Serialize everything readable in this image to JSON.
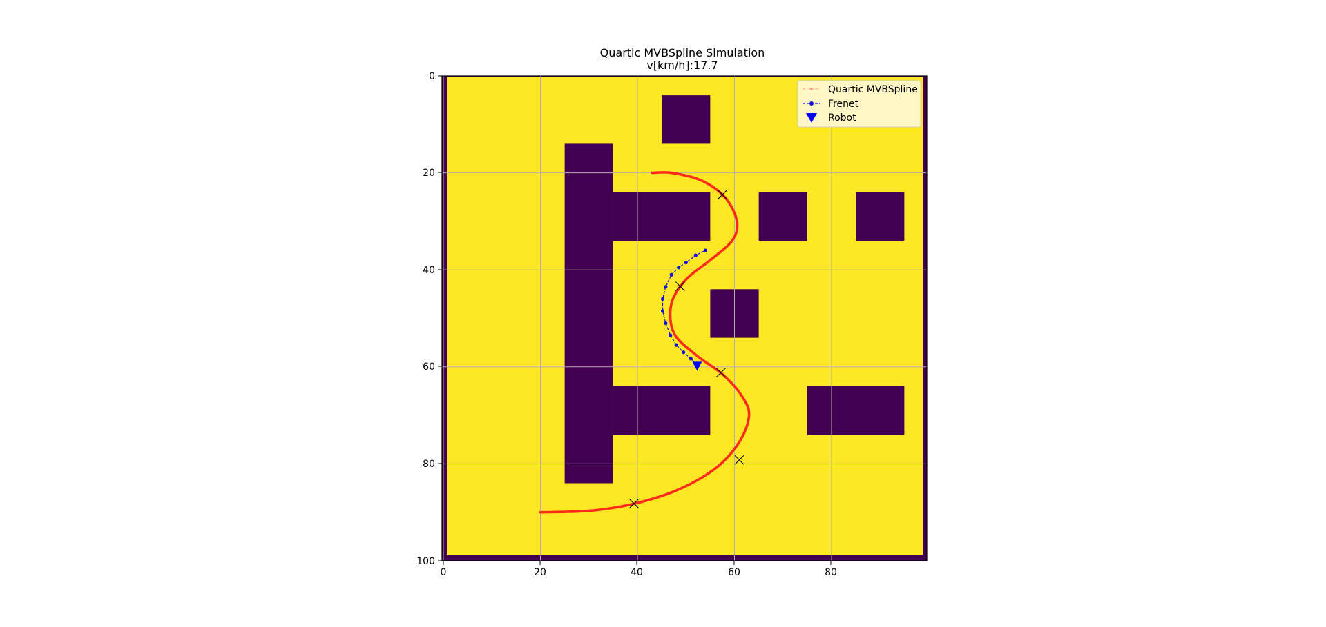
{
  "chart_data": {
    "type": "line",
    "title": "Quartic MVBSpline Simulation",
    "subtitle": "v[km/h]:17.7",
    "xlim": [
      0,
      100
    ],
    "ylim": [
      100,
      0
    ],
    "xticks": [
      "0",
      "20",
      "40",
      "60",
      "80"
    ],
    "yticks": [
      "0",
      "20",
      "40",
      "60",
      "80",
      "100"
    ],
    "grid": true,
    "legend_position": "top-right",
    "colors": {
      "free_space": "#fde725",
      "obstacle": "#440154",
      "spline": "#ff2a1a",
      "frenet": "#1010e0",
      "robot": "#0000ff",
      "waypoint": "#000000"
    },
    "map": {
      "border": true,
      "obstacles": [
        {
          "x": [
            45,
            55
          ],
          "y": [
            4,
            14
          ]
        },
        {
          "x": [
            25,
            35
          ],
          "y": [
            14,
            84
          ]
        },
        {
          "x": [
            35,
            55
          ],
          "y": [
            24,
            34
          ]
        },
        {
          "x": [
            65,
            75
          ],
          "y": [
            24,
            34
          ]
        },
        {
          "x": [
            85,
            95
          ],
          "y": [
            24,
            34
          ]
        },
        {
          "x": [
            55,
            65
          ],
          "y": [
            44,
            54
          ]
        },
        {
          "x": [
            35,
            55
          ],
          "y": [
            64,
            74
          ]
        },
        {
          "x": [
            75,
            95
          ],
          "y": [
            64,
            74
          ]
        }
      ]
    },
    "series": [
      {
        "name": "Quartic MVBSpline",
        "style": "dash-dot with markers",
        "points": [
          [
            20,
            90
          ],
          [
            30,
            89.7
          ],
          [
            39,
            88.3
          ],
          [
            48,
            85.5
          ],
          [
            56,
            81
          ],
          [
            61,
            75.5
          ],
          [
            63,
            70
          ],
          [
            61.5,
            66
          ],
          [
            57.5,
            61.5
          ],
          [
            52,
            57.5
          ],
          [
            47.5,
            53
          ],
          [
            47,
            47
          ],
          [
            50,
            42
          ],
          [
            55,
            38
          ],
          [
            59.5,
            34
          ],
          [
            60.5,
            30
          ],
          [
            58,
            25
          ],
          [
            53,
            21.5
          ],
          [
            47,
            20
          ],
          [
            43,
            20
          ]
        ]
      },
      {
        "name": "Frenet",
        "style": "dashed with dot markers",
        "points": [
          [
            52.3,
            59.5
          ],
          [
            51,
            58.3
          ],
          [
            49.5,
            57
          ],
          [
            48,
            55.5
          ],
          [
            46.8,
            53.5
          ],
          [
            45.8,
            51
          ],
          [
            45.2,
            48.5
          ],
          [
            45.2,
            46
          ],
          [
            45.8,
            43.5
          ],
          [
            47,
            41
          ],
          [
            48.5,
            39.5
          ],
          [
            50,
            38.5
          ],
          [
            52,
            37
          ],
          [
            54,
            36
          ]
        ]
      },
      {
        "name": "Robot",
        "style": "triangle-down marker",
        "points": [
          [
            52.3,
            59.8
          ]
        ]
      }
    ],
    "waypoints": [
      [
        39.3,
        88.2
      ],
      [
        61,
        79.2
      ],
      [
        57.2,
        61.2
      ],
      [
        48.8,
        43.4
      ],
      [
        57.5,
        24.5
      ]
    ]
  }
}
